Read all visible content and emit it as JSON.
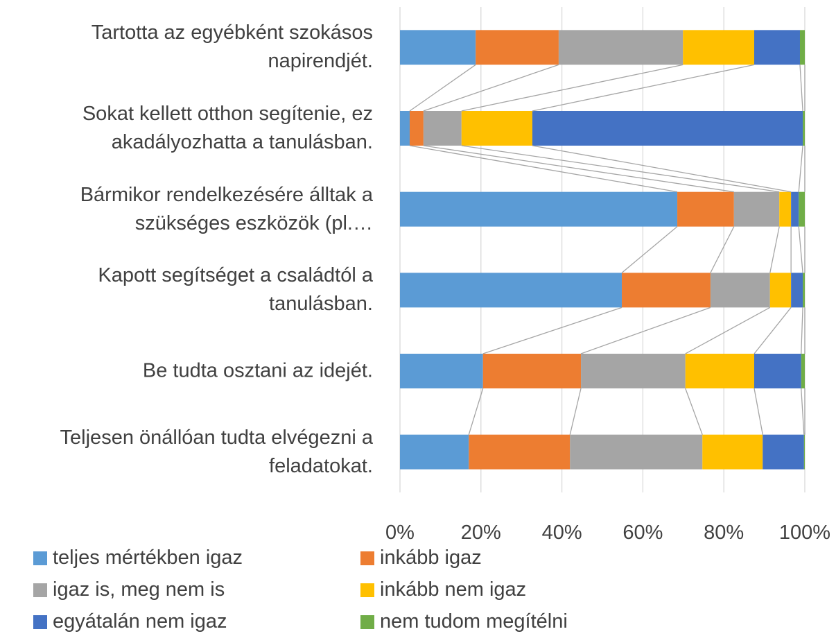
{
  "chart_data": {
    "type": "stacked-bar-100",
    "categories": [
      "Tartotta az egyébként szokásos\nnapirendjét.",
      "Sokat kellett otthon segítenie, ez\nakadályozhatta a tanulásban.",
      "Bármikor rendelkezésére álltak a\nszükséges eszközök (pl.…",
      "Kapott segítséget a családtól a\ntanulásban.",
      "Be tudta osztani az idejét.",
      "Teljesen önállóan tudta elvégezni a\nfeladatokat."
    ],
    "series": [
      {
        "name": "teljes mértékben igaz",
        "color": "#5b9bd5",
        "values": [
          18.7,
          2.4,
          68.5,
          54.8,
          20.5,
          17
        ]
      },
      {
        "name": "inkább igaz",
        "color": "#ed7d31",
        "values": [
          20.5,
          3.4,
          14,
          21.9,
          24.2,
          25
        ]
      },
      {
        "name": "igaz is, meg nem is",
        "color": "#a5a5a5",
        "values": [
          30.7,
          9.4,
          11.2,
          14.7,
          25.8,
          32.7
        ]
      },
      {
        "name": "inkább nem igaz",
        "color": "#ffc000",
        "values": [
          17.6,
          17.5,
          2.9,
          5.2,
          17,
          14.9
        ]
      },
      {
        "name": "egyátalán nem igaz",
        "color": "#4472c4",
        "values": [
          11.3,
          66.8,
          1.9,
          2.9,
          11.6,
          10.2
        ]
      },
      {
        "name": "nem tudom megítélni",
        "color": "#70ad47",
        "values": [
          1.2,
          0.5,
          1.5,
          0.5,
          0.9,
          0.2
        ]
      }
    ],
    "xlim": [
      0,
      100
    ],
    "xticks": [
      {
        "value": 0,
        "label": "0%"
      },
      {
        "value": 20,
        "label": "20%"
      },
      {
        "value": 40,
        "label": "40%"
      },
      {
        "value": 60,
        "label": "60%"
      },
      {
        "value": 80,
        "label": "80%"
      },
      {
        "value": 100,
        "label": "100%"
      }
    ],
    "grid": true,
    "series_lines": true,
    "legend": "bottom"
  }
}
